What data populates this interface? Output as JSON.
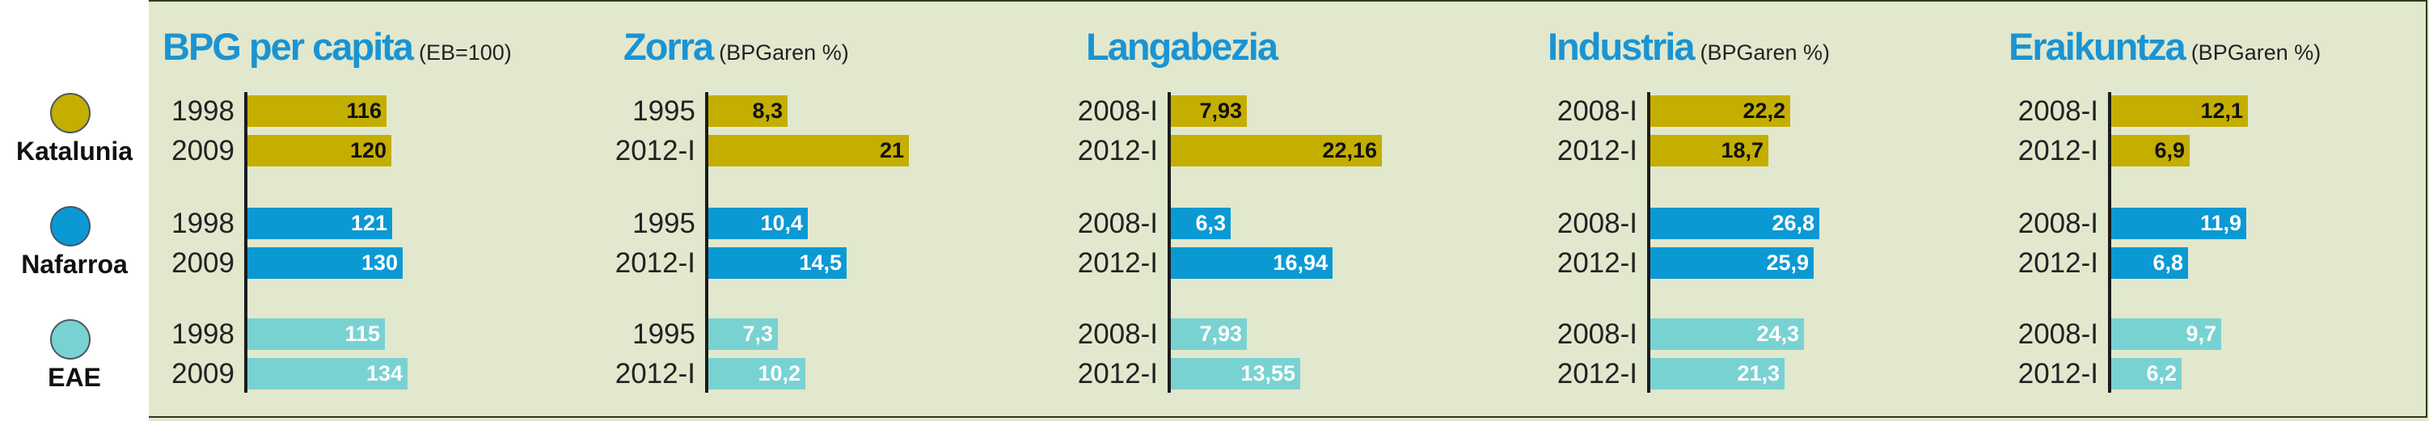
{
  "regions": [
    {
      "name": "Katalunia",
      "color": "#c4ae00",
      "label_color": "#111111"
    },
    {
      "name": "Nafarroa",
      "color": "#0b99d4",
      "label_color": "#ffffff"
    },
    {
      "name": "EAE",
      "color": "#79d2d2",
      "label_color": "#ffffff"
    }
  ],
  "chart_data": [
    {
      "type": "bar",
      "title": "BPG per capita",
      "subtitle": "(EB=100)",
      "series": [
        {
          "name": "Katalunia",
          "categories": [
            "1998",
            "2009"
          ],
          "values": [
            116,
            120
          ],
          "labels": [
            "116",
            "120"
          ]
        },
        {
          "name": "Nafarroa",
          "categories": [
            "1998",
            "2009"
          ],
          "values": [
            121,
            130
          ],
          "labels": [
            "121",
            "130"
          ]
        },
        {
          "name": "EAE",
          "categories": [
            "1998",
            "2009"
          ],
          "values": [
            115,
            134
          ],
          "labels": [
            "115",
            "134"
          ]
        }
      ]
    },
    {
      "type": "bar",
      "title": "Zorra",
      "subtitle": "(BPGaren %)",
      "series": [
        {
          "name": "Katalunia",
          "categories": [
            "1995",
            "2012-I"
          ],
          "values": [
            8.3,
            21
          ],
          "labels": [
            "8,3",
            "21"
          ]
        },
        {
          "name": "Nafarroa",
          "categories": [
            "1995",
            "2012-I"
          ],
          "values": [
            10.4,
            14.5
          ],
          "labels": [
            "10,4",
            "14,5"
          ]
        },
        {
          "name": "EAE",
          "categories": [
            "1995",
            "2012-I"
          ],
          "values": [
            7.3,
            10.2
          ],
          "labels": [
            "7,3",
            "10,2"
          ]
        }
      ]
    },
    {
      "type": "bar",
      "title": "Langabezia",
      "subtitle": "",
      "series": [
        {
          "name": "Katalunia",
          "categories": [
            "2008-I",
            "2012-I"
          ],
          "values": [
            7.93,
            22.16
          ],
          "labels": [
            "7,93",
            "22,16"
          ]
        },
        {
          "name": "Nafarroa",
          "categories": [
            "2008-I",
            "2012-I"
          ],
          "values": [
            6.3,
            16.94
          ],
          "labels": [
            "6,3",
            "16,94"
          ]
        },
        {
          "name": "EAE",
          "categories": [
            "2008-I",
            "2012-I"
          ],
          "values": [
            7.93,
            13.55
          ],
          "labels": [
            "7,93",
            "13,55"
          ]
        }
      ]
    },
    {
      "type": "bar",
      "title": "Industria",
      "subtitle": "(BPGaren %)",
      "series": [
        {
          "name": "Katalunia",
          "categories": [
            "2008-I",
            "2012-I"
          ],
          "values": [
            22.2,
            18.7
          ],
          "labels": [
            "22,2",
            "18,7"
          ]
        },
        {
          "name": "Nafarroa",
          "categories": [
            "2008-I",
            "2012-I"
          ],
          "values": [
            26.8,
            25.9
          ],
          "labels": [
            "26,8",
            "25,9"
          ]
        },
        {
          "name": "EAE",
          "categories": [
            "2008-I",
            "2012-I"
          ],
          "values": [
            24.3,
            21.3
          ],
          "labels": [
            "24,3",
            "21,3"
          ]
        }
      ]
    },
    {
      "type": "bar",
      "title": "Eraikuntza",
      "subtitle": "(BPGaren %)",
      "series": [
        {
          "name": "Katalunia",
          "categories": [
            "2008-I",
            "2012-I"
          ],
          "values": [
            12.1,
            6.9
          ],
          "labels": [
            "12,1",
            "6,9"
          ]
        },
        {
          "name": "Nafarroa",
          "categories": [
            "2008-I",
            "2012-I"
          ],
          "values": [
            11.9,
            6.8
          ],
          "labels": [
            "11,9",
            "6,8"
          ]
        },
        {
          "name": "EAE",
          "categories": [
            "2008-I",
            "2012-I"
          ],
          "values": [
            9.7,
            6.2
          ],
          "labels": [
            "9,7",
            "6,2"
          ]
        }
      ]
    }
  ]
}
